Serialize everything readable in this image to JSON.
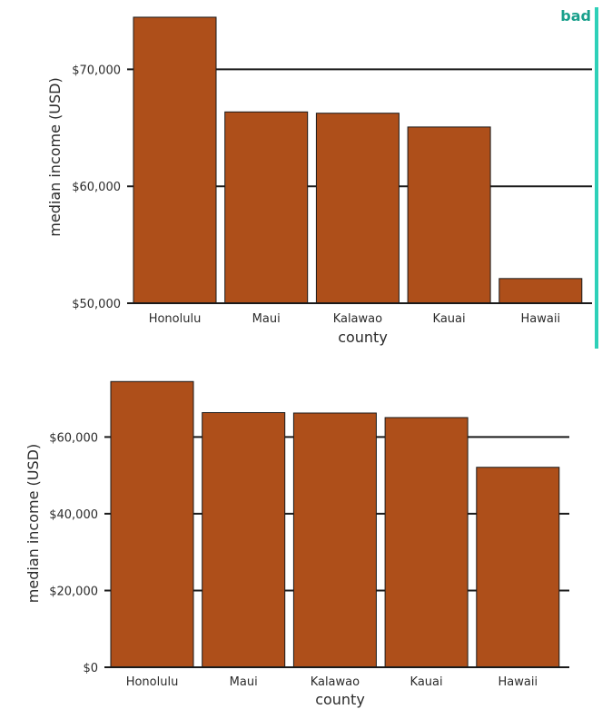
{
  "badge": {
    "label": "bad",
    "color": "#1aa08c"
  },
  "colors": {
    "bar": "#ae4f1a"
  },
  "chart_data": [
    {
      "type": "bar",
      "title": "",
      "xlabel": "county",
      "ylabel": "median income (USD)",
      "categories": [
        "Honolulu",
        "Maui",
        "Kalawao",
        "Kauai",
        "Hawaii"
      ],
      "values": [
        74460,
        66360,
        66250,
        65070,
        52110
      ],
      "ylim": [
        50000,
        75000
      ],
      "yticks": [
        50000,
        60000,
        70000
      ],
      "ytick_labels": [
        "$50,000",
        "$60,000",
        "$70,000"
      ],
      "grid": true
    },
    {
      "type": "bar",
      "title": "",
      "xlabel": "county",
      "ylabel": "median income (USD)",
      "categories": [
        "Honolulu",
        "Maui",
        "Kalawao",
        "Kauai",
        "Hawaii"
      ],
      "values": [
        74460,
        66360,
        66250,
        65070,
        52110
      ],
      "ylim": [
        0,
        75000
      ],
      "yticks": [
        0,
        20000,
        40000,
        60000
      ],
      "ytick_labels": [
        "$0",
        "$20,000",
        "$40,000",
        "$60,000"
      ],
      "grid": true
    }
  ]
}
